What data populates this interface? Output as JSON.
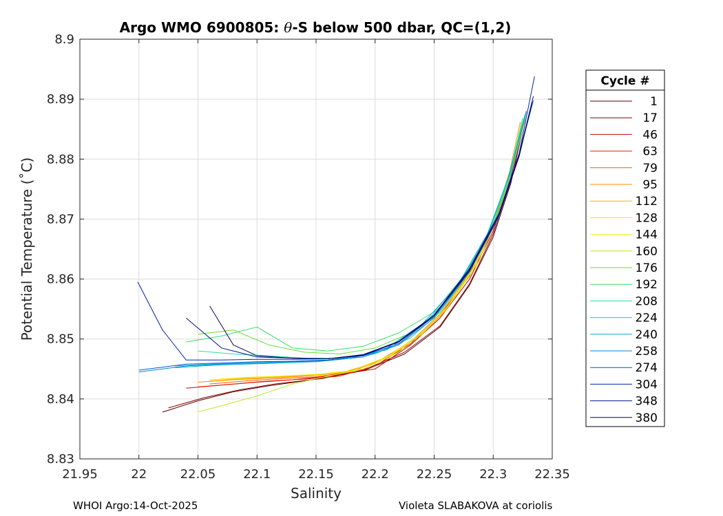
{
  "chart_data": {
    "type": "line",
    "title": "Argo WMO 6900805: θ-S below 500 dbar,  QC=(1,2)",
    "title_parts": {
      "before": "Argo WMO 6900805: ",
      "theta": "θ",
      "after": "-S below 500 dbar,  QC=(1,2)"
    },
    "xlabel": "Salinity",
    "ylabel": "Potential Temperature (˚C)",
    "xlim": [
      21.95,
      22.35
    ],
    "ylim": [
      8.83,
      8.9
    ],
    "xticks": [
      "21.95",
      "22",
      "22.05",
      "22.1",
      "22.15",
      "22.2",
      "22.25",
      "22.3",
      "22.35"
    ],
    "yticks": [
      "8.83",
      "8.84",
      "8.85",
      "8.86",
      "8.87",
      "8.88",
      "8.89",
      "8.9"
    ],
    "grid": true,
    "legend": {
      "title": "Cycle #",
      "position": "outside-right",
      "entries": [
        {
          "label": "1",
          "color": "#550000"
        },
        {
          "label": "17",
          "color": "#8b0000"
        },
        {
          "label": "46",
          "color": "#cc0000"
        },
        {
          "label": "63",
          "color": "#e62200"
        },
        {
          "label": "79",
          "color": "#ff5500"
        },
        {
          "label": "95",
          "color": "#ff8800"
        },
        {
          "label": "112",
          "color": "#ffaa00"
        },
        {
          "label": "128",
          "color": "#ffdd00"
        },
        {
          "label": "144",
          "color": "#eeee00"
        },
        {
          "label": "160",
          "color": "#bbee22"
        },
        {
          "label": "176",
          "color": "#66dd33"
        },
        {
          "label": "192",
          "color": "#33dd66"
        },
        {
          "label": "208",
          "color": "#22ddaa"
        },
        {
          "label": "224",
          "color": "#00ccdd"
        },
        {
          "label": "240",
          "color": "#00aadd"
        },
        {
          "label": "258",
          "color": "#0088cc"
        },
        {
          "label": "274",
          "color": "#0055cc"
        },
        {
          "label": "304",
          "color": "#0022aa"
        },
        {
          "label": "348",
          "color": "#001188"
        },
        {
          "label": "380",
          "color": "#000066"
        }
      ]
    },
    "series": [
      {
        "name": "1",
        "color": "#550000",
        "x": [
          22.02,
          22.05,
          22.08,
          22.11,
          22.15,
          22.19,
          22.225,
          22.255,
          22.28,
          22.3,
          22.315,
          22.325
        ],
        "y": [
          8.8378,
          8.8397,
          8.8412,
          8.8422,
          8.8433,
          8.8447,
          8.8475,
          8.852,
          8.859,
          8.867,
          8.876,
          8.885
        ]
      },
      {
        "name": "17",
        "color": "#8b0000",
        "x": [
          22.025,
          22.055,
          22.085,
          22.115,
          22.155,
          22.19,
          22.225,
          22.255,
          22.28,
          22.3,
          22.316,
          22.328
        ],
        "y": [
          8.8385,
          8.8402,
          8.8415,
          8.8425,
          8.8434,
          8.8448,
          8.8478,
          8.8522,
          8.8592,
          8.8675,
          8.877,
          8.888
        ]
      },
      {
        "name": "46",
        "color": "#cc0000",
        "x": [
          22.04,
          22.07,
          22.1,
          22.13,
          22.16,
          22.2,
          22.23,
          22.255,
          22.28,
          22.3,
          22.315,
          22.327
        ],
        "y": [
          8.8418,
          8.8423,
          8.8428,
          8.8432,
          8.8438,
          8.845,
          8.849,
          8.8535,
          8.86,
          8.868,
          8.877,
          8.887
        ]
      },
      {
        "name": "63",
        "color": "#e62200",
        "x": [
          22.05,
          22.08,
          22.11,
          22.14,
          22.17,
          22.2,
          22.23,
          22.255,
          22.28,
          22.3,
          22.315,
          22.326
        ],
        "y": [
          8.842,
          8.8425,
          8.843,
          8.8433,
          8.8438,
          8.8455,
          8.8492,
          8.854,
          8.8605,
          8.8685,
          8.8775,
          8.8865
        ]
      },
      {
        "name": "79",
        "color": "#ff5500",
        "x": [
          22.06,
          22.09,
          22.12,
          22.15,
          22.18,
          22.21,
          22.24,
          22.26,
          22.285,
          22.3,
          22.314,
          22.324
        ],
        "y": [
          8.8425,
          8.843,
          8.8434,
          8.8437,
          8.8445,
          8.847,
          8.851,
          8.855,
          8.8625,
          8.869,
          8.877,
          8.8855
        ]
      },
      {
        "name": "95",
        "color": "#ff8800",
        "x": [
          22.05,
          22.08,
          22.11,
          22.14,
          22.17,
          22.2,
          22.23,
          22.255,
          22.28,
          22.3,
          22.314,
          22.323
        ],
        "y": [
          8.8428,
          8.8432,
          8.8435,
          8.8438,
          8.8443,
          8.846,
          8.8495,
          8.8542,
          8.861,
          8.869,
          8.878,
          8.8862
        ]
      },
      {
        "name": "112",
        "color": "#ffaa00",
        "x": [
          22.06,
          22.09,
          22.12,
          22.15,
          22.18,
          22.21,
          22.24,
          22.26,
          22.285,
          22.302,
          22.315,
          22.324
        ],
        "y": [
          8.843,
          8.8434,
          8.8437,
          8.844,
          8.8446,
          8.8468,
          8.8508,
          8.8548,
          8.8622,
          8.8698,
          8.878,
          8.8858
        ]
      },
      {
        "name": "128",
        "color": "#ffdd00",
        "x": [
          22.06,
          22.09,
          22.12,
          22.15,
          22.18,
          22.21,
          22.24,
          22.26,
          22.285,
          22.302,
          22.315,
          22.325
        ],
        "y": [
          8.8432,
          8.8436,
          8.8438,
          8.8441,
          8.8447,
          8.847,
          8.851,
          8.855,
          8.8624,
          8.87,
          8.8782,
          8.8862
        ]
      },
      {
        "name": "144",
        "color": "#eeee00",
        "x": [
          22.07,
          22.1,
          22.13,
          22.16,
          22.19,
          22.215,
          22.24,
          22.262,
          22.285,
          22.302,
          22.316,
          22.326
        ],
        "y": [
          8.8433,
          8.8436,
          8.8439,
          8.8442,
          8.845,
          8.8475,
          8.851,
          8.8555,
          8.8623,
          8.8702,
          8.8785,
          8.8868
        ]
      },
      {
        "name": "160",
        "color": "#bbee22",
        "x": [
          22.05,
          22.1,
          22.13,
          22.16,
          22.19,
          22.22,
          22.245,
          22.265,
          22.288,
          22.304,
          22.317,
          22.327
        ],
        "y": [
          8.8378,
          8.8405,
          8.8425,
          8.8438,
          8.845,
          8.8478,
          8.852,
          8.8562,
          8.863,
          8.8705,
          8.879,
          8.8865
        ]
      },
      {
        "name": "176",
        "color": "#66dd33",
        "x": [
          22.05,
          22.08,
          22.11,
          22.14,
          22.17,
          22.2,
          22.23,
          22.255,
          22.28,
          22.3,
          22.315,
          22.326
        ],
        "y": [
          8.8508,
          8.8515,
          8.849,
          8.8478,
          8.8475,
          8.8485,
          8.851,
          8.8548,
          8.8612,
          8.869,
          8.8775,
          8.8865
        ]
      },
      {
        "name": "192",
        "color": "#33dd66",
        "x": [
          22.04,
          22.07,
          22.1,
          22.13,
          22.16,
          22.19,
          22.22,
          22.25,
          22.275,
          22.298,
          22.314,
          22.325
        ],
        "y": [
          8.8495,
          8.8505,
          8.852,
          8.8485,
          8.848,
          8.8488,
          8.851,
          8.8545,
          8.8605,
          8.8685,
          8.8775,
          8.8868
        ]
      },
      {
        "name": "208",
        "color": "#22ddaa",
        "x": [
          22.05,
          22.08,
          22.11,
          22.14,
          22.17,
          22.2,
          22.23,
          22.255,
          22.28,
          22.3,
          22.315,
          22.326
        ],
        "y": [
          8.848,
          8.8475,
          8.8472,
          8.8468,
          8.8468,
          8.8475,
          8.8502,
          8.8545,
          8.8612,
          8.869,
          8.8778,
          8.8868
        ]
      },
      {
        "name": "224",
        "color": "#00ccdd",
        "x": [
          22.03,
          22.06,
          22.09,
          22.12,
          22.15,
          22.18,
          22.21,
          22.24,
          22.27,
          22.295,
          22.313,
          22.327
        ],
        "y": [
          8.8455,
          8.8458,
          8.846,
          8.8462,
          8.8462,
          8.8468,
          8.8482,
          8.8522,
          8.8585,
          8.8672,
          8.877,
          8.8875
        ]
      },
      {
        "name": "240",
        "color": "#00aadd",
        "x": [
          22.03,
          22.06,
          22.09,
          22.12,
          22.15,
          22.18,
          22.21,
          22.24,
          22.27,
          22.295,
          22.314,
          22.328
        ],
        "y": [
          8.8452,
          8.8456,
          8.8458,
          8.846,
          8.8462,
          8.8468,
          8.8485,
          8.8525,
          8.859,
          8.8675,
          8.8775,
          8.8878
        ]
      },
      {
        "name": "258",
        "color": "#0088cc",
        "x": [
          22.0,
          22.04,
          22.07,
          22.1,
          22.13,
          22.16,
          22.19,
          22.22,
          22.25,
          22.28,
          22.305,
          22.322,
          22.333
        ],
        "y": [
          8.8445,
          8.8455,
          8.8458,
          8.846,
          8.8462,
          8.8464,
          8.847,
          8.849,
          8.8535,
          8.8612,
          8.8705,
          8.8805,
          8.8895
        ]
      },
      {
        "name": "274",
        "color": "#0055cc",
        "x": [
          22.0,
          22.04,
          22.07,
          22.1,
          22.13,
          22.16,
          22.19,
          22.22,
          22.25,
          22.28,
          22.305,
          22.322,
          22.334
        ],
        "y": [
          8.8448,
          8.8458,
          8.846,
          8.8462,
          8.8463,
          8.8465,
          8.8472,
          8.8492,
          8.8538,
          8.8615,
          8.8708,
          8.8808,
          8.8898
        ]
      },
      {
        "name": "304",
        "color": "#0022aa",
        "x": [
          21.999,
          22.02,
          22.04,
          22.07,
          22.1,
          22.13,
          22.16,
          22.19,
          22.22,
          22.25,
          22.28,
          22.305,
          22.322,
          22.335
        ],
        "y": [
          8.8595,
          8.8515,
          8.8465,
          8.8465,
          8.8466,
          8.8466,
          8.8467,
          8.8474,
          8.8495,
          8.854,
          8.8618,
          8.871,
          8.881,
          8.8938
        ]
      },
      {
        "name": "348",
        "color": "#001188",
        "x": [
          22.04,
          22.07,
          22.1,
          22.13,
          22.16,
          22.19,
          22.22,
          22.25,
          22.28,
          22.305,
          22.322,
          22.334
        ],
        "y": [
          8.8535,
          8.8485,
          8.847,
          8.8468,
          8.8467,
          8.8474,
          8.8496,
          8.854,
          8.8616,
          8.8708,
          8.8808,
          8.8905
        ]
      },
      {
        "name": "380",
        "color": "#000066",
        "x": [
          22.06,
          22.08,
          22.1,
          22.13,
          22.16,
          22.19,
          22.22,
          22.25,
          22.28,
          22.305,
          22.322,
          22.333
        ],
        "y": [
          8.8555,
          8.849,
          8.8472,
          8.8468,
          8.8467,
          8.8473,
          8.8495,
          8.8538,
          8.8614,
          8.8706,
          8.8805,
          8.8895
        ]
      }
    ]
  },
  "footer": {
    "left": "WHOI Argo:14-Oct-2025",
    "right": "Violeta SLABAKOVA at coriolis"
  }
}
